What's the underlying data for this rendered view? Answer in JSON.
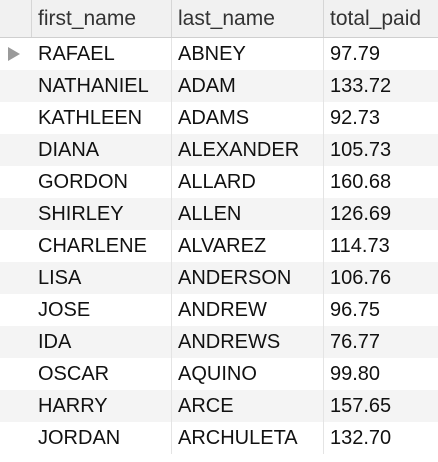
{
  "columns": {
    "first_name": "first_name",
    "last_name": "last_name",
    "total_paid": "total_paid"
  },
  "current_row_indicator": "triangle-right-icon",
  "rows": [
    {
      "first_name": "RAFAEL",
      "last_name": "ABNEY",
      "total_paid": "97.79"
    },
    {
      "first_name": "NATHANIEL",
      "last_name": "ADAM",
      "total_paid": "133.72"
    },
    {
      "first_name": "KATHLEEN",
      "last_name": "ADAMS",
      "total_paid": "92.73"
    },
    {
      "first_name": "DIANA",
      "last_name": "ALEXANDER",
      "total_paid": "105.73"
    },
    {
      "first_name": "GORDON",
      "last_name": "ALLARD",
      "total_paid": "160.68"
    },
    {
      "first_name": "SHIRLEY",
      "last_name": "ALLEN",
      "total_paid": "126.69"
    },
    {
      "first_name": "CHARLENE",
      "last_name": "ALVAREZ",
      "total_paid": "114.73"
    },
    {
      "first_name": "LISA",
      "last_name": "ANDERSON",
      "total_paid": "106.76"
    },
    {
      "first_name": "JOSE",
      "last_name": "ANDREW",
      "total_paid": "96.75"
    },
    {
      "first_name": "IDA",
      "last_name": "ANDREWS",
      "total_paid": "76.77"
    },
    {
      "first_name": "OSCAR",
      "last_name": "AQUINO",
      "total_paid": "99.80"
    },
    {
      "first_name": "HARRY",
      "last_name": "ARCE",
      "total_paid": "157.65"
    },
    {
      "first_name": "JORDAN",
      "last_name": "ARCHULETA",
      "total_paid": "132.70"
    }
  ]
}
